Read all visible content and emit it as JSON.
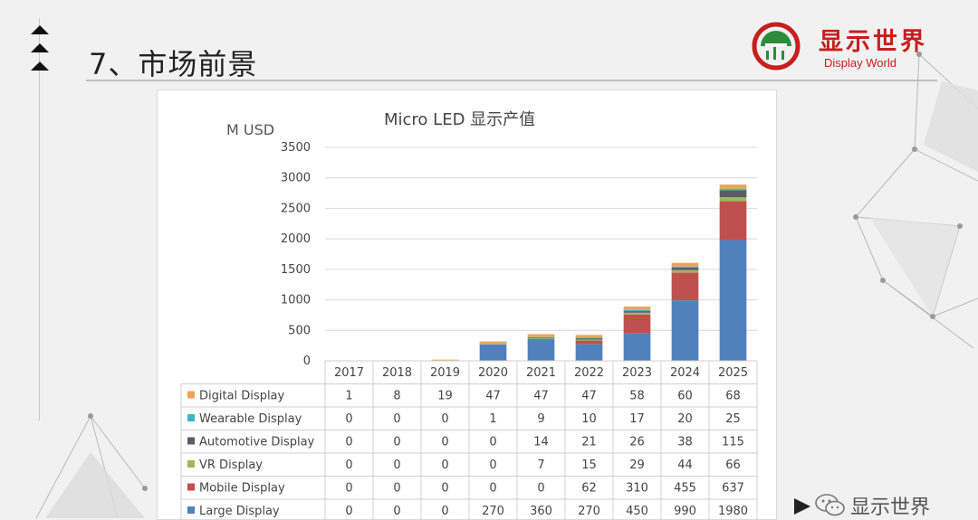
{
  "header": {
    "title": "7、市场前景"
  },
  "logo": {
    "name_cn": "显示世界",
    "name_en": "Display World"
  },
  "footer": {
    "wechat_name": "显示世界"
  },
  "chart_data": {
    "type": "bar",
    "stacked": true,
    "title": "Micro LED 显示产值",
    "ylabel": "M USD",
    "xlabel": "",
    "ylim": [
      0,
      3500
    ],
    "yticks": [
      "3500",
      "3000",
      "2500",
      "2000",
      "1500",
      "1000",
      "500",
      "0"
    ],
    "categories": [
      "2017",
      "2018",
      "2019",
      "2020",
      "2021",
      "2022",
      "2023",
      "2024",
      "2025"
    ],
    "grid": true,
    "legend": "data-table",
    "series": [
      {
        "name": "Digital Display",
        "color": "#f0a35a",
        "values": [
          1,
          8,
          19,
          47,
          47,
          47,
          58,
          60,
          68
        ]
      },
      {
        "name": "Wearable Display",
        "color": "#3fb5c8",
        "values": [
          0,
          0,
          0,
          1,
          9,
          10,
          17,
          20,
          25
        ]
      },
      {
        "name": "Automotive Display",
        "color": "#5b5b6b",
        "values": [
          0,
          0,
          0,
          0,
          14,
          21,
          26,
          38,
          115
        ]
      },
      {
        "name": "VR Display",
        "color": "#9bbb59",
        "values": [
          0,
          0,
          0,
          0,
          7,
          15,
          29,
          44,
          66
        ]
      },
      {
        "name": "Mobile Display",
        "color": "#c0504d",
        "values": [
          0,
          0,
          0,
          0,
          0,
          62,
          310,
          455,
          637
        ]
      },
      {
        "name": "Large Display",
        "color": "#4f81bd",
        "values": [
          0,
          0,
          0,
          270,
          360,
          270,
          450,
          990,
          1980
        ]
      }
    ],
    "stack_order": [
      "Large Display",
      "Mobile Display",
      "VR Display",
      "Automotive Display",
      "Wearable Display",
      "Digital Display"
    ]
  }
}
